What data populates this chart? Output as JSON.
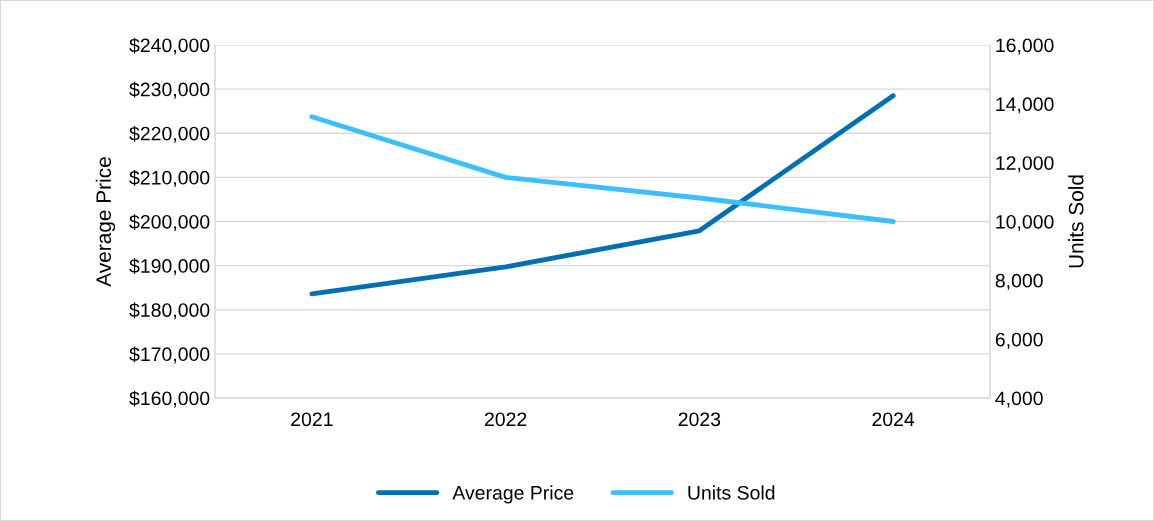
{
  "chart_data": {
    "type": "line",
    "categories": [
      "2021",
      "2022",
      "2023",
      "2024"
    ],
    "series": [
      {
        "name": "Average Price",
        "color": "#0070b0",
        "values": [
          183600,
          189700,
          197900,
          228500
        ]
      },
      {
        "name": "Units Sold",
        "color": "#3dbeff",
        "axis": "y2",
        "values": [
          13560,
          11500,
          10800,
          10000
        ]
      }
    ],
    "ylabel": "Average Price",
    "y2label": "Units Sold",
    "ylim": [
      160000,
      240000
    ],
    "yticks": [
      {
        "value": 160000,
        "label": "$160,000"
      },
      {
        "value": 170000,
        "label": "$170,000"
      },
      {
        "value": 180000,
        "label": "$180,000"
      },
      {
        "value": 190000,
        "label": "$190,000"
      },
      {
        "value": 200000,
        "label": "$200,000"
      },
      {
        "value": 210000,
        "label": "$210,000"
      },
      {
        "value": 220000,
        "label": "$220,000"
      },
      {
        "value": 230000,
        "label": "$230,000"
      },
      {
        "value": 240000,
        "label": "$240,000"
      }
    ],
    "y2lim": [
      4000,
      16000
    ],
    "y2ticks": [
      {
        "value": 4000,
        "label": "4,000"
      },
      {
        "value": 6000,
        "label": "6,000"
      },
      {
        "value": 8000,
        "label": "8,000"
      },
      {
        "value": 10000,
        "label": "10,000"
      },
      {
        "value": 12000,
        "label": "12,000"
      },
      {
        "value": 14000,
        "label": "14,000"
      },
      {
        "value": 16000,
        "label": "16,000"
      }
    ],
    "grid": "y",
    "legend": "bottom",
    "marker": "none",
    "line_style": "solid"
  }
}
